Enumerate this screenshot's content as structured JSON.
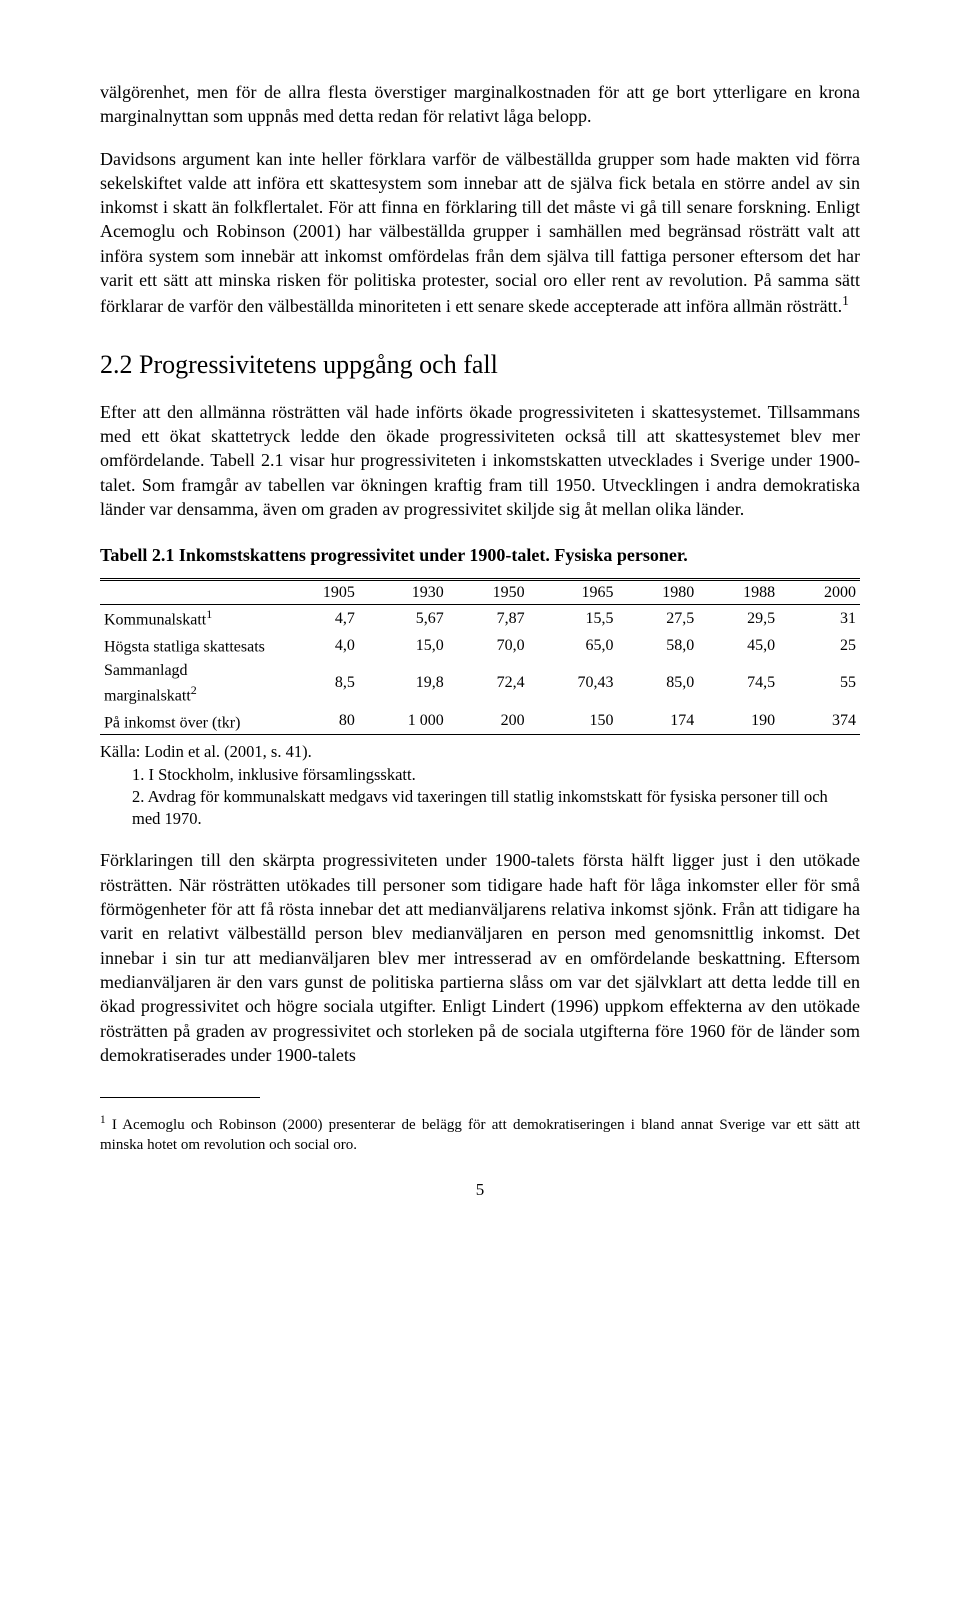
{
  "paragraphs": {
    "p1": "välgörenhet, men för de allra flesta överstiger marginalkostnaden för att ge bort ytterligare en krona marginalnyttan som uppnås med detta redan för relativt låga belopp.",
    "p2a": "Davidsons argument kan inte heller förklara varför de välbeställda grupper som hade makten vid förra sekelskiftet valde att införa ett skattesystem som innebar att de själva fick betala en större andel av sin inkomst i skatt än folkflertalet. För att finna en förklaring till det måste vi gå till senare forskning. Enligt Acemoglu och Robinson (2001) har välbeställda grupper i samhällen med begränsad rösträtt valt att införa system som innebär att inkomst omfördelas från dem själva till fattiga personer eftersom det har varit ett sätt att minska risken för politiska protester, social oro eller rent av revolution. På samma sätt förklarar de varför den välbeställda minoriteten i ett senare skede accepterade att införa allmän rösträtt.",
    "p2_sup": "1",
    "p3": "Efter att den allmänna rösträtten väl hade införts ökade progressiviteten i skattesystemet. Tillsammans med ett ökat skattetryck ledde den ökade progressiviteten också till att skattesystemet blev mer omfördelande. Tabell 2.1 visar hur progressiviteten i inkomstskatten utvecklades i Sverige under 1900-talet. Som framgår av tabellen var ökningen kraftig fram till 1950. Utvecklingen i andra demokratiska länder var densamma, även om graden av progressivitet skiljde sig åt mellan olika länder.",
    "p4": "Förklaringen till den skärpta progressiviteten under 1900-talets första hälft ligger just i den utökade rösträtten. När rösträtten utökades till personer som tidigare hade haft för låga inkomster eller för små förmögenheter för att få rösta innebar det att medianväljarens relativa inkomst sjönk. Från att tidigare ha varit en relativt välbeställd person blev medianväljaren en person med genomsnittlig inkomst. Det innebar i sin tur att medianväljaren blev mer intresserad av en omfördelande beskattning. Eftersom medianväljaren är den vars gunst de politiska partierna slåss om var det självklart att detta ledde till en ökad progressivitet och högre sociala utgifter. Enligt Lindert (1996) uppkom effekterna av den utökade rösträtten på graden av progressivitet och storleken på de sociala utgifterna före 1960 för de länder som demokratiserades under 1900-talets"
  },
  "section_heading": "2.2 Progressivitetens uppgång och fall",
  "table": {
    "title": "Tabell 2.1 Inkomstskattens progressivitet under 1900-talet. Fysiska personer.",
    "year_headers": [
      "1905",
      "1930",
      "1950",
      "1965",
      "1980",
      "1988",
      "2000"
    ],
    "rows": [
      {
        "label": "Kommunalskatt",
        "sup": "1",
        "values": [
          "4,7",
          "5,67",
          "7,87",
          "15,5",
          "27,5",
          "29,5",
          "31"
        ]
      },
      {
        "label": "Högsta statliga skattesats",
        "sup": "",
        "values": [
          "4,0",
          "15,0",
          "70,0",
          "65,0",
          "58,0",
          "45,0",
          "25"
        ]
      },
      {
        "label": "Sammanlagd marginalskatt",
        "sup": "2",
        "values": [
          "8,5",
          "19,8",
          "72,4",
          "70,43",
          "85,0",
          "74,5",
          "55"
        ]
      },
      {
        "label": "På inkomst över (tkr)",
        "sup": "",
        "values": [
          "80",
          "1 000",
          "200",
          "150",
          "174",
          "190",
          "374"
        ]
      }
    ],
    "notes": {
      "source": "Källa: Lodin et al. (2001, s. 41).",
      "n1": "1. I Stockholm, inklusive församlingsskatt.",
      "n2": "2. Avdrag för kommunalskatt medgavs vid taxeringen till statlig inkomstskatt för fysiska personer till och med 1970."
    }
  },
  "footnote": {
    "marker": "1",
    "text": " I Acemoglu och Robinson (2000) presenterar de belägg för att demokratiseringen i bland annat Sverige var ett sätt att minska hotet om revolution och social oro."
  },
  "page_number": "5"
}
